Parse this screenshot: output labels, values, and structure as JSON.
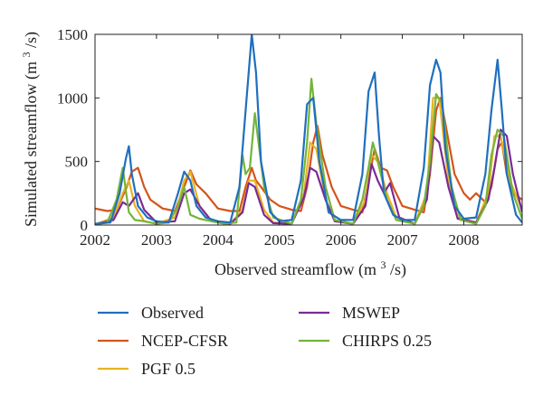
{
  "chart_data": {
    "type": "line",
    "xlabel": "Observed streamflow",
    "xlabel_unit_base": "(m",
    "xlabel_unit_exp": "3",
    "xlabel_unit_tail": "/s)",
    "ylabel": "Simulated streamflow",
    "ylabel_unit_base": "(m",
    "ylabel_unit_exp": "3",
    "ylabel_unit_tail": "/s)",
    "xlim": [
      2002.0,
      2008.95
    ],
    "ylim": [
      0,
      1500
    ],
    "x_ticks": [
      "2002",
      "2003",
      "2004",
      "2005",
      "2006",
      "2007",
      "2008"
    ],
    "y_ticks": [
      "0",
      "500",
      "1000",
      "1500"
    ],
    "grid": false,
    "legend_placement": "bottom",
    "series": [
      {
        "name": "Observed",
        "color": "#1f6fbf",
        "x": [
          2002.0,
          2002.25,
          2002.4,
          2002.5,
          2002.55,
          2002.6,
          2002.7,
          2002.85,
          2003.0,
          2003.2,
          2003.35,
          2003.45,
          2003.55,
          2003.65,
          2003.8,
          2004.0,
          2004.2,
          2004.35,
          2004.45,
          2004.55,
          2004.62,
          2004.7,
          2004.85,
          2005.0,
          2005.2,
          2005.35,
          2005.45,
          2005.55,
          2005.65,
          2005.8,
          2006.0,
          2006.2,
          2006.35,
          2006.45,
          2006.55,
          2006.62,
          2006.7,
          2006.85,
          2007.0,
          2007.2,
          2007.35,
          2007.45,
          2007.55,
          2007.62,
          2007.7,
          2007.85,
          2008.0,
          2008.2,
          2008.35,
          2008.45,
          2008.55,
          2008.62,
          2008.7,
          2008.85,
          2008.95
        ],
        "y": [
          10,
          20,
          250,
          520,
          620,
          400,
          150,
          60,
          30,
          20,
          250,
          420,
          350,
          150,
          60,
          30,
          20,
          300,
          900,
          1500,
          1200,
          500,
          100,
          30,
          40,
          350,
          950,
          1000,
          500,
          100,
          40,
          40,
          400,
          1050,
          1200,
          700,
          250,
          80,
          40,
          40,
          450,
          1100,
          1300,
          1200,
          600,
          150,
          50,
          60,
          400,
          900,
          1300,
          900,
          400,
          80,
          20
        ]
      },
      {
        "name": "NCEP-CFSR",
        "color": "#d4541a",
        "x": [
          2002.0,
          2002.2,
          2002.35,
          2002.5,
          2002.6,
          2002.7,
          2002.8,
          2002.9,
          2003.1,
          2003.3,
          2003.45,
          2003.55,
          2003.65,
          2003.8,
          2004.0,
          2004.2,
          2004.35,
          2004.45,
          2004.55,
          2004.62,
          2004.7,
          2004.85,
          2005.0,
          2005.2,
          2005.35,
          2005.45,
          2005.55,
          2005.62,
          2005.7,
          2005.85,
          2006.0,
          2006.2,
          2006.35,
          2006.45,
          2006.55,
          2006.65,
          2006.75,
          2006.85,
          2007.0,
          2007.2,
          2007.35,
          2007.45,
          2007.55,
          2007.62,
          2007.7,
          2007.85,
          2008.0,
          2008.1,
          2008.2,
          2008.35,
          2008.45,
          2008.55,
          2008.62,
          2008.7,
          2008.8,
          2008.95
        ],
        "y": [
          130,
          110,
          120,
          280,
          420,
          450,
          300,
          200,
          130,
          110,
          300,
          430,
          320,
          250,
          130,
          110,
          110,
          300,
          450,
          350,
          300,
          200,
          150,
          120,
          110,
          300,
          650,
          780,
          550,
          300,
          150,
          120,
          100,
          350,
          600,
          450,
          430,
          300,
          150,
          120,
          100,
          400,
          900,
          1000,
          800,
          400,
          250,
          200,
          250,
          180,
          300,
          600,
          650,
          400,
          250,
          200
        ]
      },
      {
        "name": "PGF 0.5",
        "color": "#e8b320",
        "x": [
          2002.0,
          2002.3,
          2002.45,
          2002.55,
          2002.65,
          2002.8,
          2003.0,
          2003.3,
          2003.45,
          2003.55,
          2003.7,
          2003.9,
          2004.2,
          2004.4,
          2004.5,
          2004.6,
          2004.75,
          2004.9,
          2005.2,
          2005.4,
          2005.5,
          2005.6,
          2005.75,
          2005.9,
          2006.2,
          2006.4,
          2006.5,
          2006.6,
          2006.75,
          2006.9,
          2007.2,
          2007.4,
          2007.5,
          2007.6,
          2007.75,
          2007.9,
          2008.2,
          2008.4,
          2008.5,
          2008.6,
          2008.75,
          2008.95
        ],
        "y": [
          5,
          60,
          250,
          350,
          150,
          30,
          10,
          60,
          350,
          420,
          150,
          30,
          10,
          120,
          350,
          350,
          120,
          20,
          10,
          250,
          650,
          600,
          200,
          40,
          10,
          200,
          550,
          500,
          250,
          60,
          10,
          250,
          1000,
          1000,
          350,
          60,
          20,
          250,
          700,
          700,
          350,
          120
        ]
      },
      {
        "name": "MSWEP",
        "color": "#7b2a96",
        "x": [
          2002.0,
          2002.3,
          2002.45,
          2002.55,
          2002.7,
          2002.8,
          2003.0,
          2003.3,
          2003.45,
          2003.55,
          2003.7,
          2003.9,
          2004.2,
          2004.4,
          2004.5,
          2004.6,
          2004.75,
          2004.9,
          2005.2,
          2005.4,
          2005.5,
          2005.6,
          2005.75,
          2005.9,
          2006.2,
          2006.4,
          2006.5,
          2006.6,
          2006.7,
          2006.8,
          2006.95,
          2007.2,
          2007.4,
          2007.5,
          2007.6,
          2007.75,
          2007.9,
          2008.2,
          2008.4,
          2008.5,
          2008.6,
          2008.7,
          2008.8,
          2008.95
        ],
        "y": [
          5,
          40,
          180,
          150,
          250,
          120,
          20,
          30,
          250,
          280,
          150,
          30,
          10,
          100,
          330,
          300,
          80,
          15,
          10,
          220,
          450,
          420,
          200,
          30,
          10,
          150,
          480,
          350,
          250,
          330,
          60,
          10,
          200,
          700,
          650,
          300,
          50,
          20,
          200,
          450,
          750,
          700,
          400,
          100
        ]
      },
      {
        "name": "CHIRPS 0.25",
        "color": "#74b43a",
        "x": [
          2002.0,
          2002.2,
          2002.35,
          2002.45,
          2002.55,
          2002.65,
          2002.8,
          2003.0,
          2003.2,
          2003.35,
          2003.45,
          2003.55,
          2003.7,
          2003.9,
          2004.1,
          2004.3,
          2004.4,
          2004.45,
          2004.52,
          2004.6,
          2004.75,
          2004.9,
          2005.2,
          2005.35,
          2005.45,
          2005.52,
          2005.6,
          2005.75,
          2005.9,
          2006.2,
          2006.35,
          2006.45,
          2006.52,
          2006.6,
          2006.75,
          2006.9,
          2007.2,
          2007.35,
          2007.45,
          2007.55,
          2007.65,
          2007.8,
          2007.95,
          2008.2,
          2008.35,
          2008.45,
          2008.55,
          2008.65,
          2008.8,
          2008.95
        ],
        "y": [
          5,
          20,
          200,
          450,
          100,
          40,
          30,
          10,
          20,
          150,
          300,
          80,
          50,
          30,
          10,
          20,
          550,
          400,
          450,
          880,
          300,
          60,
          10,
          200,
          650,
          1150,
          800,
          300,
          40,
          10,
          200,
          450,
          650,
          500,
          200,
          40,
          10,
          150,
          500,
          1030,
          950,
          300,
          40,
          10,
          150,
          550,
          750,
          700,
          250,
          50
        ]
      }
    ]
  }
}
